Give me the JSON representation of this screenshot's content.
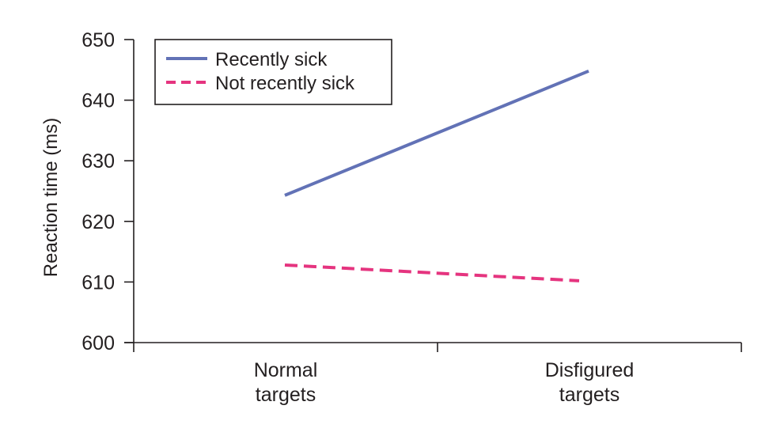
{
  "chart_data": {
    "type": "line",
    "title": "",
    "xlabel": "",
    "ylabel": "Reaction time (ms)",
    "categories": [
      [
        "Normal",
        "targets"
      ],
      [
        "Disfigured",
        "targets"
      ]
    ],
    "ylim": [
      600,
      650
    ],
    "yticks": [
      600,
      610,
      620,
      630,
      640,
      650
    ],
    "grid": false,
    "legend_position": "top-left",
    "series": [
      {
        "name": "Recently sick",
        "values": [
          624.3,
          644.8
        ],
        "color": "#6272b6",
        "dash": "solid"
      },
      {
        "name": "Not recently sick",
        "values": [
          612.8,
          610.2
        ],
        "color": "#e5347f",
        "dash": "dashed"
      }
    ]
  }
}
